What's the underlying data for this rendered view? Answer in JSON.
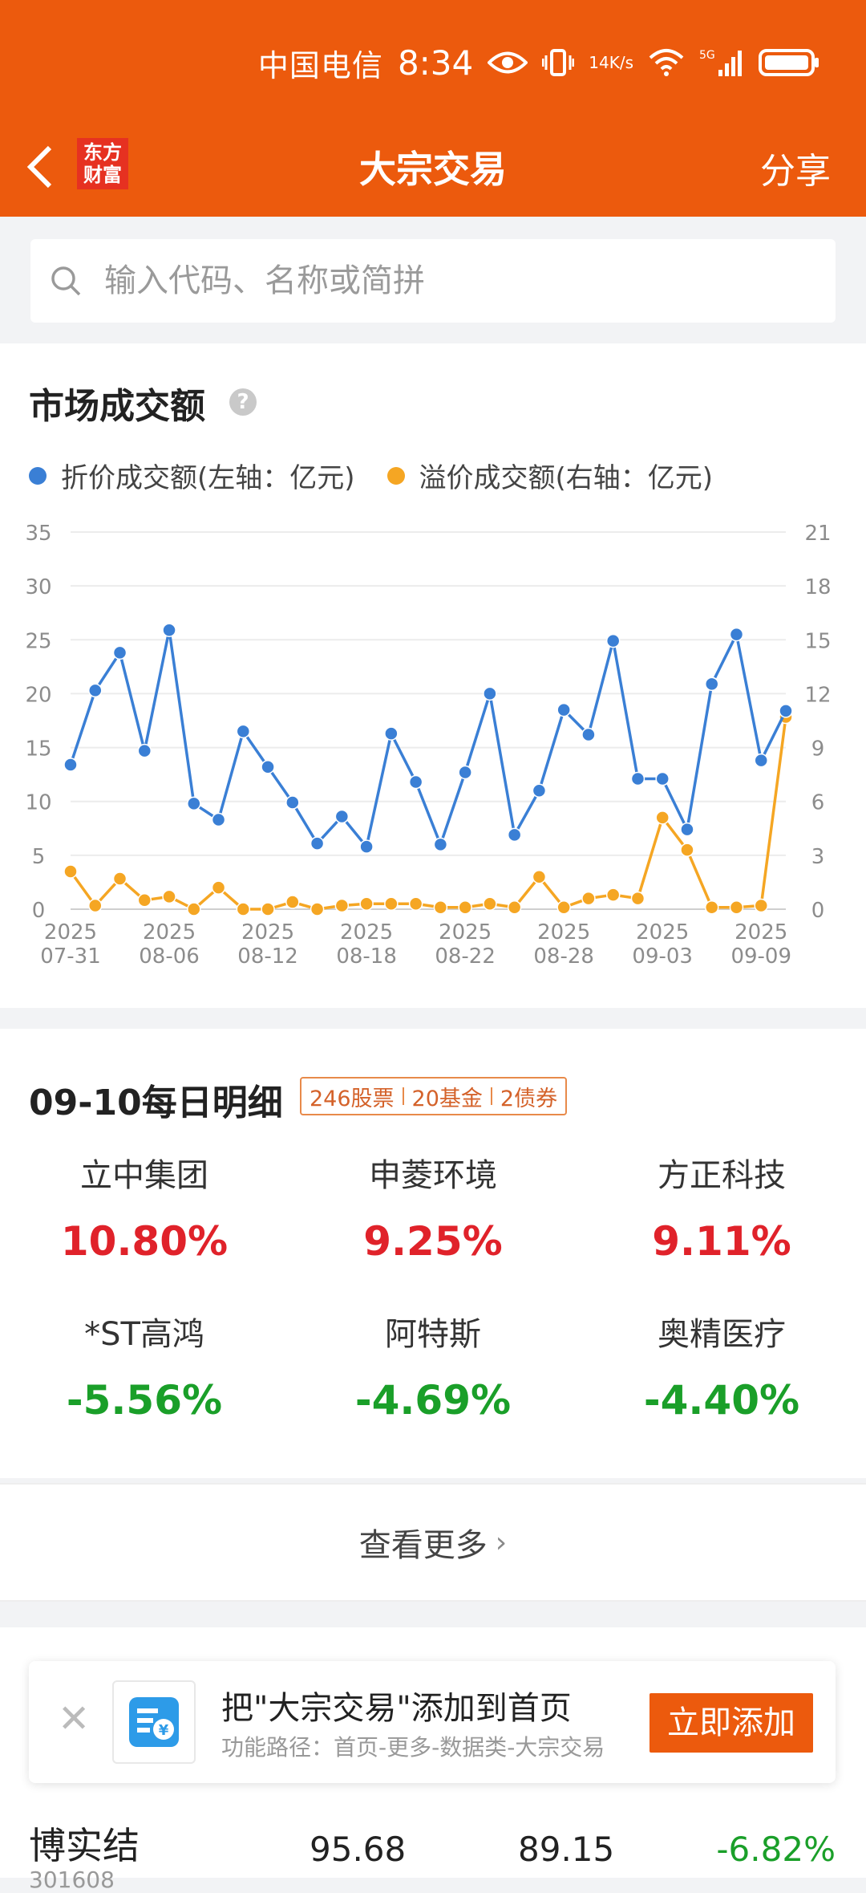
{
  "status_bar": {
    "carrier": "中国电信",
    "time": "8:34",
    "net_speed_top": "14",
    "net_speed_bottom": "K/s",
    "network": "5G"
  },
  "nav": {
    "logo_line1": "东方",
    "logo_line2": "财富",
    "title": "大宗交易",
    "share": "分享"
  },
  "search": {
    "placeholder": "输入代码、名称或简拼"
  },
  "market": {
    "title": "市场成交额",
    "help": "?",
    "legend_left": "折价成交额(左轴：亿元)",
    "legend_right": "溢价成交额(右轴：亿元)"
  },
  "chart_data": {
    "type": "line",
    "title": "市场成交额",
    "x": [
      "07-31",
      "08-01",
      "08-04",
      "08-05",
      "08-06",
      "08-07",
      "08-08",
      "08-11",
      "08-12",
      "08-13",
      "08-14",
      "08-15",
      "08-18",
      "08-19",
      "08-20",
      "08-21",
      "08-22",
      "08-25",
      "08-26",
      "08-27",
      "08-28",
      "08-29",
      "09-01",
      "09-02",
      "09-03",
      "09-04",
      "09-05",
      "09-08",
      "09-09",
      "09-10"
    ],
    "x_tick_labels": [
      [
        "2025",
        "07-31"
      ],
      [
        "2025",
        "08-06"
      ],
      [
        "2025",
        "08-12"
      ],
      [
        "2025",
        "08-18"
      ],
      [
        "2025",
        "08-22"
      ],
      [
        "2025",
        "08-28"
      ],
      [
        "2025",
        "09-03"
      ],
      [
        "2025",
        "09-09"
      ]
    ],
    "x_tick_index": [
      0,
      4,
      8,
      12,
      16,
      20,
      24,
      28
    ],
    "y_left": {
      "range": [
        0,
        35
      ],
      "ticks": [
        "0",
        "5",
        "10",
        "15",
        "20",
        "25",
        "30",
        "35"
      ]
    },
    "y_right": {
      "range": [
        0,
        21
      ],
      "ticks": [
        "0",
        "3",
        "6",
        "9",
        "12",
        "15",
        "18",
        "21"
      ]
    },
    "series": [
      {
        "name": "折价成交额(左轴：亿元)",
        "axis": "left",
        "color": "#3a7fd5",
        "values": [
          13.4,
          20.3,
          23.8,
          14.7,
          25.9,
          9.8,
          8.3,
          16.5,
          13.2,
          9.9,
          6.1,
          8.6,
          5.8,
          16.3,
          11.8,
          6.0,
          12.7,
          20.0,
          6.9,
          11.0,
          18.5,
          16.2,
          24.9,
          12.1,
          12.1,
          7.4,
          20.9,
          25.5,
          13.8,
          18.4
        ]
      },
      {
        "name": "溢价成交额(右轴：亿元)",
        "axis": "right",
        "color": "#f5a623",
        "values": [
          2.1,
          0.2,
          1.7,
          0.5,
          0.7,
          0.0,
          1.2,
          0.0,
          0.0,
          0.4,
          0.0,
          0.2,
          0.3,
          0.3,
          0.3,
          0.1,
          0.1,
          0.3,
          0.1,
          1.8,
          0.1,
          0.6,
          0.8,
          0.6,
          5.1,
          3.3,
          0.1,
          0.1,
          0.2,
          10.7
        ]
      }
    ],
    "grid": true
  },
  "detail": {
    "title": "09-10每日明细",
    "badge_stocks": "246股票",
    "badge_funds": "20基金",
    "badge_bonds": "2债券",
    "movers": [
      {
        "name": "立中集团",
        "pct": "10.80%",
        "dir": "up"
      },
      {
        "name": "申菱环境",
        "pct": "9.25%",
        "dir": "up"
      },
      {
        "name": "方正科技",
        "pct": "9.11%",
        "dir": "up"
      },
      {
        "name": "*ST高鸿",
        "pct": "-5.56%",
        "dir": "down"
      },
      {
        "name": "阿特斯",
        "pct": "-4.69%",
        "dir": "down"
      },
      {
        "name": "奥精医疗",
        "pct": "-4.40%",
        "dir": "down"
      }
    ],
    "more": "查看更多"
  },
  "promo": {
    "title": "把\"大宗交易\"添加到首页",
    "subtitle": "功能路径：首页-更多-数据类-大宗交易",
    "button": "立即添加"
  },
  "first_row": {
    "name": "博实结",
    "code": "301608",
    "v1": "95.68",
    "v2": "89.15",
    "v3": "-6.82%"
  },
  "colors": {
    "brand": "#ec5a0d",
    "up": "#e0222a",
    "down": "#1a9f29",
    "series_left": "#3a7fd5",
    "series_right": "#f5a623"
  }
}
